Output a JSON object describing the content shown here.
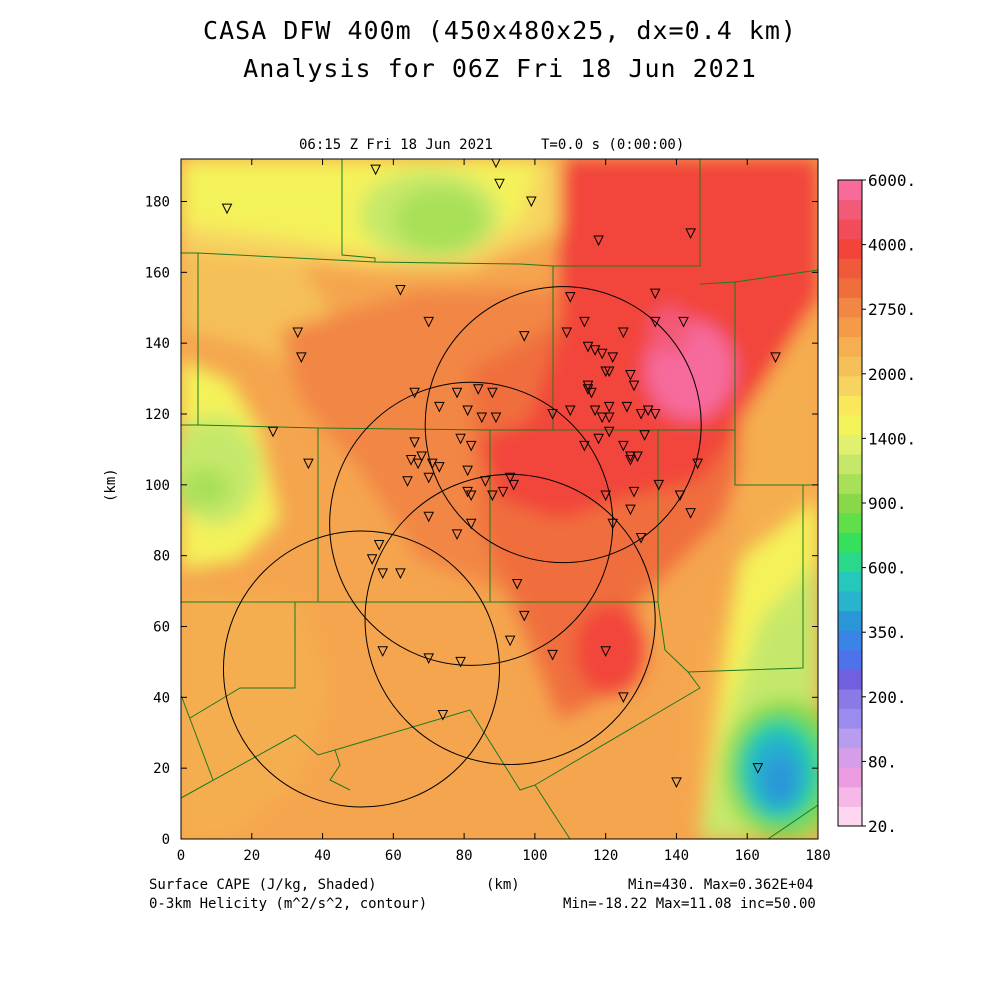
{
  "title": "CASA DFW 400m (450x480x25, dx=0.4 km)",
  "subtitle": "Analysis for 06Z Fri 18 Jun 2021",
  "plot_header_left": "06:15 Z Fri 18 Jun 2021",
  "plot_header_right": "T=0.0 s (0:00:00)",
  "footer": {
    "left1": "Surface CAPE (J/kg, Shaded)",
    "left2": "0-3km Helicity (m^2/s^2, contour)",
    "center": "(km)",
    "right1": "Min=430. Max=0.362E+04",
    "right2": "Min=-18.22 Max=11.08 inc=50.00"
  },
  "colors": {
    "cape_low_yellow": "#f4f25a",
    "cape_mid_orange": "#f5a54e",
    "cape_high_red": "#f2443a",
    "cape_peak_pink": "#f65c93",
    "cape_green": "#7bd96c",
    "cape_cyan": "#28b8c8",
    "cape_blue": "#2a96d8",
    "county_lines": "#1e7a1e"
  },
  "chart_data": {
    "type": "heatmap",
    "xlabel": "(km)",
    "ylabel": "(km)",
    "xlim": [
      0,
      180
    ],
    "ylim": [
      0,
      192
    ],
    "xticks": [
      0,
      20,
      40,
      60,
      80,
      100,
      120,
      140,
      160,
      180
    ],
    "yticks": [
      0,
      20,
      40,
      60,
      80,
      100,
      120,
      140,
      160,
      180
    ],
    "colorbar": {
      "labels": [
        "6000.",
        "4000.",
        "2750.",
        "2000.",
        "1400.",
        "900.",
        "600.",
        "350.",
        "200.",
        "80.",
        "20."
      ],
      "colors": [
        "#fdd6ef",
        "#f5b8e8",
        "#ec9ce0",
        "#d69ee8",
        "#b89cf0",
        "#9a8cee",
        "#8a7ae6",
        "#7060e0",
        "#4c72ec",
        "#3a84e8",
        "#2a96d8",
        "#28b4cc",
        "#26c8bc",
        "#2ad88a",
        "#36e05a",
        "#60de4c",
        "#88d84a",
        "#a8e058",
        "#c6e86a",
        "#e2f070",
        "#f2f45a",
        "#f8e85a",
        "#f7d460",
        "#f5c058",
        "#f5ae50",
        "#f59a48",
        "#f28644",
        "#f06e3c",
        "#f05a3a",
        "#f2443a",
        "#f24c5a",
        "#f35a78",
        "#f66a9c"
      ]
    },
    "radar_rings_km": [
      {
        "center": [
          51,
          48
        ],
        "radius": 39
      },
      {
        "center": [
          108,
          117
        ],
        "radius": 39
      },
      {
        "center": [
          82,
          89
        ],
        "radius": 40
      },
      {
        "center": [
          93,
          62
        ],
        "radius": 41
      }
    ],
    "station_markers_km": [
      [
        13,
        178
      ],
      [
        55,
        189
      ],
      [
        89,
        191
      ],
      [
        90,
        185
      ],
      [
        99,
        180
      ],
      [
        118,
        169
      ],
      [
        144,
        171
      ],
      [
        168,
        136
      ],
      [
        33,
        143
      ],
      [
        34,
        136
      ],
      [
        26,
        115
      ],
      [
        36,
        106
      ],
      [
        62,
        155
      ],
      [
        70,
        146
      ],
      [
        66,
        126
      ],
      [
        73,
        122
      ],
      [
        78,
        126
      ],
      [
        84,
        127
      ],
      [
        88,
        126
      ],
      [
        81,
        121
      ],
      [
        85,
        119
      ],
      [
        89,
        119
      ],
      [
        79,
        113
      ],
      [
        82,
        111
      ],
      [
        66,
        112
      ],
      [
        68,
        108
      ],
      [
        65,
        107
      ],
      [
        67,
        106
      ],
      [
        71,
        106
      ],
      [
        73,
        105
      ],
      [
        64,
        101
      ],
      [
        70,
        102
      ],
      [
        81,
        104
      ],
      [
        86,
        101
      ],
      [
        82,
        97
      ],
      [
        81,
        98
      ],
      [
        88,
        97
      ],
      [
        91,
        98
      ],
      [
        93,
        102
      ],
      [
        94,
        100
      ],
      [
        70,
        91
      ],
      [
        82,
        89
      ],
      [
        78,
        86
      ],
      [
        56,
        83
      ],
      [
        54,
        79
      ],
      [
        57,
        75
      ],
      [
        62,
        75
      ],
      [
        95,
        72
      ],
      [
        97,
        63
      ],
      [
        93,
        56
      ],
      [
        57,
        53
      ],
      [
        70,
        51
      ],
      [
        79,
        50
      ],
      [
        105,
        52
      ],
      [
        74,
        35
      ],
      [
        120,
        53
      ],
      [
        125,
        40
      ],
      [
        140,
        16
      ],
      [
        163,
        20
      ],
      [
        97,
        142
      ],
      [
        110,
        153
      ],
      [
        109,
        143
      ],
      [
        114,
        146
      ],
      [
        115,
        139
      ],
      [
        117,
        138
      ],
      [
        119,
        137
      ],
      [
        122,
        136
      ],
      [
        120,
        132
      ],
      [
        121,
        132
      ],
      [
        125,
        143
      ],
      [
        127,
        131
      ],
      [
        128,
        128
      ],
      [
        115,
        128
      ],
      [
        115,
        127
      ],
      [
        116,
        126
      ],
      [
        134,
        154
      ],
      [
        134,
        146
      ],
      [
        142,
        146
      ],
      [
        117,
        121
      ],
      [
        121,
        122
      ],
      [
        121,
        119
      ],
      [
        119,
        119
      ],
      [
        126,
        122
      ],
      [
        130,
        120
      ],
      [
        132,
        121
      ],
      [
        134,
        120
      ],
      [
        114,
        111
      ],
      [
        118,
        113
      ],
      [
        121,
        115
      ],
      [
        125,
        111
      ],
      [
        127,
        108
      ],
      [
        129,
        108
      ],
      [
        131,
        114
      ],
      [
        127,
        107
      ],
      [
        128,
        98
      ],
      [
        135,
        100
      ],
      [
        120,
        97
      ],
      [
        122,
        89
      ],
      [
        127,
        93
      ],
      [
        130,
        85
      ],
      [
        141,
        97
      ],
      [
        144,
        92
      ],
      [
        146,
        106
      ],
      [
        105,
        120
      ],
      [
        110,
        121
      ]
    ],
    "cape_field_note": ""
  }
}
